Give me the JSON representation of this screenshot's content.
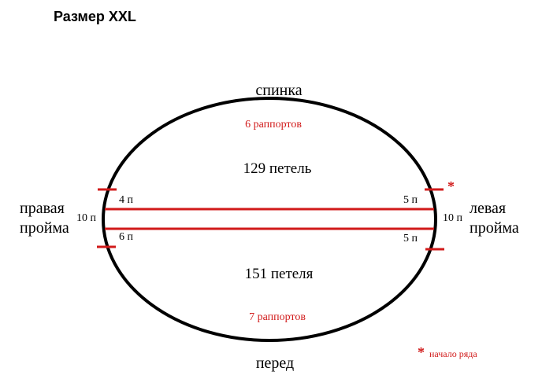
{
  "title": "Размер XXL",
  "labels": {
    "back": "спинка",
    "front": "перед",
    "back_repeats": "6 раппортов",
    "back_stitches": "129 петель",
    "front_stitches": "151 петеля",
    "front_repeats": "7 раппортов",
    "right_armhole_line1": "правая",
    "right_armhole_line2": "пройма",
    "left_armhole_line1": "левая",
    "left_armhole_line2": "пройма",
    "right_armhole_count": "10 п",
    "left_armhole_count": "10 п",
    "top_left_count": "4 п",
    "bottom_left_count": "6 п",
    "top_right_count": "5 п",
    "bottom_right_count": "5 п",
    "start_marker": "*",
    "legend_star": "*",
    "legend_text": "начало ряда"
  },
  "colors": {
    "accent_red": "#d11a1a",
    "outline": "#000000"
  }
}
